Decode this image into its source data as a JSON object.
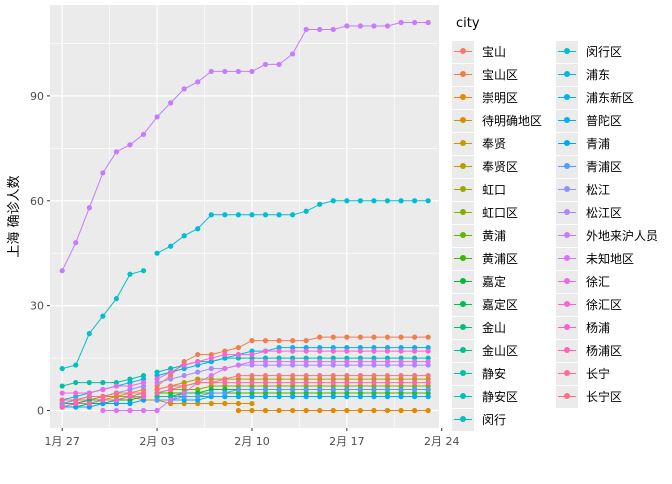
{
  "chart_data": {
    "type": "line",
    "ylabel": "上海 确诊人数",
    "xlabel": "",
    "legend_title": "city",
    "legend_position": "right",
    "grid": true,
    "xlim": [
      -0.9,
      27.8
    ],
    "ylim": [
      -5,
      116
    ],
    "x_ticks": [
      {
        "x": 0,
        "label": "1月 27"
      },
      {
        "x": 7,
        "label": "2月 03"
      },
      {
        "x": 14,
        "label": "2月 10"
      },
      {
        "x": 21,
        "label": "2月 17"
      },
      {
        "x": 28,
        "label": "2月 24"
      }
    ],
    "y_ticks": [
      0,
      30,
      60,
      90
    ],
    "x_note": "x values are days after 1月 27",
    "series": [
      {
        "name": "宝山",
        "color": "#F8766D",
        "x": [
          0,
          1,
          2,
          3,
          4,
          5,
          6
        ],
        "values": [
          2,
          3,
          3,
          4,
          5,
          5,
          6
        ]
      },
      {
        "name": "宝山区",
        "color": "#F07E4C",
        "x": [
          7,
          8,
          9,
          10,
          11,
          12,
          13,
          14,
          15,
          16,
          17,
          18,
          19,
          20,
          21,
          22,
          23,
          24,
          25,
          26,
          27
        ],
        "values": [
          7,
          10,
          14,
          16,
          16,
          17,
          18,
          20,
          20,
          20,
          20,
          20,
          21,
          21,
          21,
          21,
          21,
          21,
          21,
          21,
          21
        ]
      },
      {
        "name": "崇明区",
        "color": "#E48800",
        "x": [
          13,
          14,
          15,
          16,
          17,
          18,
          19,
          20,
          21,
          22,
          23,
          24,
          25,
          26,
          27
        ],
        "values": [
          0,
          0,
          0,
          0,
          0,
          0,
          0,
          0,
          0,
          0,
          0,
          0,
          0,
          0,
          0
        ]
      },
      {
        "name": "待明确地区",
        "color": "#D79000",
        "x": [
          0,
          1,
          2,
          3,
          4,
          5,
          6,
          7,
          8,
          9,
          10,
          11,
          12,
          13,
          14
        ],
        "values": [
          1,
          2,
          3,
          3,
          4,
          4,
          3,
          3,
          2,
          2,
          2,
          2,
          2,
          2,
          2
        ]
      },
      {
        "name": "奉贤",
        "color": "#C59900",
        "x": [
          0,
          1,
          2,
          3,
          4,
          5,
          6
        ],
        "values": [
          1,
          2,
          3,
          4,
          4,
          5,
          5
        ]
      },
      {
        "name": "奉贤区",
        "color": "#B39F00",
        "x": [
          7,
          8,
          9,
          10,
          11,
          12,
          13,
          14,
          15,
          16,
          17,
          18,
          19,
          20,
          21,
          22,
          23,
          24,
          25,
          26,
          27
        ],
        "values": [
          6,
          7,
          8,
          9,
          9,
          9,
          9,
          9,
          9,
          9,
          9,
          9,
          9,
          9,
          9,
          9,
          9,
          9,
          9,
          9,
          9
        ]
      },
      {
        "name": "虹口",
        "color": "#9CA700",
        "x": [
          0,
          1,
          2,
          3,
          4,
          5,
          6
        ],
        "values": [
          1,
          2,
          2,
          3,
          3,
          4,
          5
        ]
      },
      {
        "name": "虹口区",
        "color": "#84AD00",
        "x": [
          7,
          8,
          9,
          10,
          11,
          12,
          13,
          14,
          15,
          16,
          17,
          18,
          19,
          20,
          21,
          22,
          23,
          24,
          25,
          26,
          27
        ],
        "values": [
          5,
          6,
          6,
          6,
          7,
          7,
          7,
          7,
          7,
          7,
          7,
          7,
          7,
          7,
          7,
          7,
          7,
          7,
          7,
          7,
          7
        ]
      },
      {
        "name": "黄浦",
        "color": "#68B300",
        "x": [
          0,
          1,
          2,
          3,
          4,
          5,
          6
        ],
        "values": [
          2,
          3,
          4,
          4,
          5,
          5,
          5
        ]
      },
      {
        "name": "黄浦区",
        "color": "#3AB700",
        "x": [
          7,
          8,
          9,
          10,
          11,
          12,
          13,
          14,
          15,
          16,
          17,
          18,
          19,
          20,
          21,
          22,
          23,
          24,
          25,
          26,
          27
        ],
        "values": [
          5,
          5,
          5,
          5,
          5,
          5,
          5,
          5,
          5,
          5,
          5,
          5,
          5,
          5,
          5,
          5,
          5,
          5,
          5,
          5,
          5
        ]
      },
      {
        "name": "嘉定",
        "color": "#00BA38",
        "x": [
          0,
          1,
          2,
          3,
          4,
          5,
          6
        ],
        "values": [
          1,
          1,
          2,
          2,
          3,
          3,
          4
        ]
      },
      {
        "name": "嘉定区",
        "color": "#00BC59",
        "x": [
          7,
          8,
          9,
          10,
          11,
          12,
          13,
          14,
          15,
          16,
          17,
          18,
          19,
          20,
          21,
          22,
          23,
          24,
          25,
          26,
          27
        ],
        "values": [
          4,
          4,
          5,
          5,
          6,
          6,
          6,
          6,
          6,
          6,
          6,
          6,
          6,
          6,
          6,
          6,
          6,
          6,
          6,
          6,
          6
        ]
      },
      {
        "name": "金山",
        "color": "#00BE73",
        "x": [
          0,
          1,
          2,
          3,
          4,
          5,
          6
        ],
        "values": [
          2,
          2,
          3,
          3,
          3,
          4,
          4
        ]
      },
      {
        "name": "金山区",
        "color": "#00C08B",
        "x": [
          7,
          8,
          9,
          10,
          11,
          12,
          13,
          14,
          15,
          16,
          17,
          18,
          19,
          20,
          21,
          22,
          23,
          24,
          25,
          26,
          27
        ],
        "values": [
          4,
          4,
          4,
          4,
          4,
          4,
          4,
          4,
          4,
          4,
          4,
          4,
          4,
          4,
          4,
          4,
          4,
          4,
          4,
          4,
          4
        ]
      },
      {
        "name": "静安",
        "color": "#00C1A1",
        "x": [
          0,
          1,
          2,
          3,
          4,
          5,
          6
        ],
        "values": [
          7,
          8,
          8,
          8,
          8,
          9,
          10
        ]
      },
      {
        "name": "静安区",
        "color": "#00C1B4",
        "x": [
          7,
          8,
          9,
          10,
          11,
          12,
          13,
          14,
          15,
          16,
          17,
          18,
          19,
          20,
          21,
          22,
          23,
          24,
          25,
          26,
          27
        ],
        "values": [
          11,
          12,
          13,
          14,
          14,
          15,
          15,
          15,
          15,
          15,
          15,
          15,
          15,
          15,
          15,
          15,
          15,
          15,
          15,
          15,
          15
        ]
      },
      {
        "name": "闵行",
        "color": "#00C0C6",
        "x": [
          0,
          1,
          2,
          3,
          4,
          5,
          6
        ],
        "values": [
          12,
          13,
          22,
          27,
          32,
          39,
          40
        ]
      },
      {
        "name": "闵行区",
        "color": "#00BDD6",
        "x": [
          7,
          8,
          9,
          10,
          11,
          12,
          13,
          14,
          15,
          16,
          17,
          18,
          19,
          20,
          21,
          22,
          23,
          24,
          25,
          26,
          27
        ],
        "values": [
          45,
          47,
          50,
          52,
          56,
          56,
          56,
          56,
          56,
          56,
          56,
          57,
          59,
          60,
          60,
          60,
          60,
          60,
          60,
          60,
          60
        ]
      },
      {
        "name": "浦东",
        "color": "#00B9E3",
        "x": [
          0,
          1,
          2,
          3,
          4,
          5,
          6
        ],
        "values": [
          3,
          4,
          5,
          6,
          7,
          8,
          9
        ]
      },
      {
        "name": "浦东新区",
        "color": "#00B4EF",
        "x": [
          7,
          8,
          9,
          10,
          11,
          12,
          13,
          14,
          15,
          16,
          17,
          18,
          19,
          20,
          21,
          22,
          23,
          24,
          25,
          26,
          27
        ],
        "values": [
          10,
          11,
          12,
          13,
          14,
          15,
          16,
          17,
          17,
          18,
          18,
          18,
          18,
          18,
          18,
          18,
          18,
          18,
          18,
          18,
          18
        ]
      },
      {
        "name": "普陀区",
        "color": "#00ADFA",
        "x": [
          7,
          8,
          9,
          10,
          11,
          12,
          13,
          14,
          15,
          16,
          17,
          18,
          19,
          20,
          21,
          22,
          23,
          24,
          25,
          26,
          27
        ],
        "values": [
          3,
          3,
          3,
          3,
          4,
          4,
          4,
          4,
          4,
          4,
          4,
          4,
          4,
          4,
          4,
          4,
          4,
          4,
          4,
          4,
          4
        ]
      },
      {
        "name": "青浦",
        "color": "#00A5FF",
        "x": [
          0,
          1,
          2,
          3,
          4,
          5,
          6
        ],
        "values": [
          1,
          1,
          1,
          2,
          2,
          2,
          3
        ]
      },
      {
        "name": "青浦区",
        "color": "#529EFF",
        "x": [
          7,
          8,
          9,
          10,
          11,
          12,
          13,
          14,
          15,
          16,
          17,
          18,
          19,
          20,
          21,
          22,
          23,
          24,
          25,
          26,
          27
        ],
        "values": [
          3,
          3,
          4,
          4,
          5,
          5,
          6,
          6,
          6,
          6,
          6,
          6,
          6,
          6,
          6,
          6,
          6,
          6,
          6,
          6,
          6
        ]
      },
      {
        "name": "松江",
        "color": "#8B93FF",
        "x": [
          0,
          1,
          2,
          3,
          4,
          5,
          6
        ],
        "values": [
          2,
          3,
          4,
          4,
          5,
          6,
          7
        ]
      },
      {
        "name": "松江区",
        "color": "#AC88FF",
        "x": [
          7,
          8,
          9,
          10,
          11,
          12,
          13,
          14,
          15,
          16,
          17,
          18,
          19,
          20,
          21,
          22,
          23,
          24,
          25,
          26,
          27
        ],
        "values": [
          8,
          9,
          10,
          11,
          12,
          12,
          13,
          13,
          13,
          13,
          13,
          13,
          13,
          13,
          13,
          13,
          13,
          13,
          13,
          13,
          13
        ]
      },
      {
        "name": "外地来沪人员",
        "color": "#C77CFF",
        "x": [
          0,
          1,
          2,
          3,
          4,
          5,
          6,
          7,
          8,
          9,
          10,
          11,
          12,
          13,
          14,
          15,
          16,
          17,
          18,
          19,
          20,
          21,
          22,
          23,
          24,
          25,
          26,
          27
        ],
        "values": [
          40,
          48,
          58,
          68,
          74,
          76,
          79,
          84,
          88,
          92,
          94,
          97,
          97,
          97,
          97,
          99,
          99,
          102,
          109,
          109,
          109,
          110,
          110,
          110,
          110,
          111,
          111,
          111
        ]
      },
      {
        "name": "未知地区",
        "color": "#DD71FA",
        "x": [
          3,
          4,
          5,
          6,
          7,
          8,
          9,
          10,
          11,
          12,
          13,
          14,
          15,
          16,
          17,
          18,
          19,
          20,
          21,
          22,
          23,
          24,
          25,
          26,
          27
        ],
        "values": [
          0,
          0,
          0,
          0,
          0,
          3,
          5,
          8,
          10,
          12,
          13,
          14,
          14,
          14,
          14,
          14,
          14,
          14,
          14,
          14,
          14,
          14,
          14,
          14,
          14
        ]
      },
      {
        "name": "徐汇",
        "color": "#EF67EB",
        "x": [
          0,
          1,
          2,
          3,
          4,
          5,
          6
        ],
        "values": [
          5,
          5,
          5,
          6,
          7,
          7,
          8
        ]
      },
      {
        "name": "徐汇区",
        "color": "#FA62D5",
        "x": [
          7,
          8,
          9,
          10,
          11,
          12,
          13,
          14,
          15,
          16,
          17,
          18,
          19,
          20,
          21,
          22,
          23,
          24,
          25,
          26,
          27
        ],
        "values": [
          9,
          11,
          13,
          14,
          15,
          16,
          16,
          16,
          17,
          17,
          17,
          17,
          17,
          17,
          17,
          17,
          17,
          17,
          17,
          17,
          17
        ]
      },
      {
        "name": "杨浦",
        "color": "#FF61C3",
        "x": [
          0,
          1,
          2,
          3,
          4,
          5,
          6
        ],
        "values": [
          1,
          2,
          2,
          3,
          3,
          4,
          4
        ]
      },
      {
        "name": "杨浦区",
        "color": "#FF65AE",
        "x": [
          7,
          8,
          9,
          10,
          11,
          12,
          13,
          14,
          15,
          16,
          17,
          18,
          19,
          20,
          21,
          22,
          23,
          24,
          25,
          26,
          27
        ],
        "values": [
          5,
          6,
          7,
          8,
          8,
          8,
          8,
          8,
          8,
          8,
          8,
          8,
          8,
          8,
          8,
          8,
          8,
          8,
          8,
          8,
          8
        ]
      },
      {
        "name": "长宁",
        "color": "#FF6A98",
        "x": [
          0,
          1,
          2,
          3,
          4,
          5,
          6
        ],
        "values": [
          3,
          3,
          4,
          4,
          5,
          5,
          5
        ]
      },
      {
        "name": "长宁区",
        "color": "#FC717F",
        "x": [
          7,
          8,
          9,
          10,
          11,
          12,
          13,
          14,
          15,
          16,
          17,
          18,
          19,
          20,
          21,
          22,
          23,
          24,
          25,
          26,
          27
        ],
        "values": [
          6,
          7,
          7,
          8,
          8,
          9,
          10,
          10,
          10,
          10,
          10,
          10,
          10,
          10,
          10,
          10,
          10,
          10,
          10,
          10,
          10
        ]
      }
    ]
  }
}
